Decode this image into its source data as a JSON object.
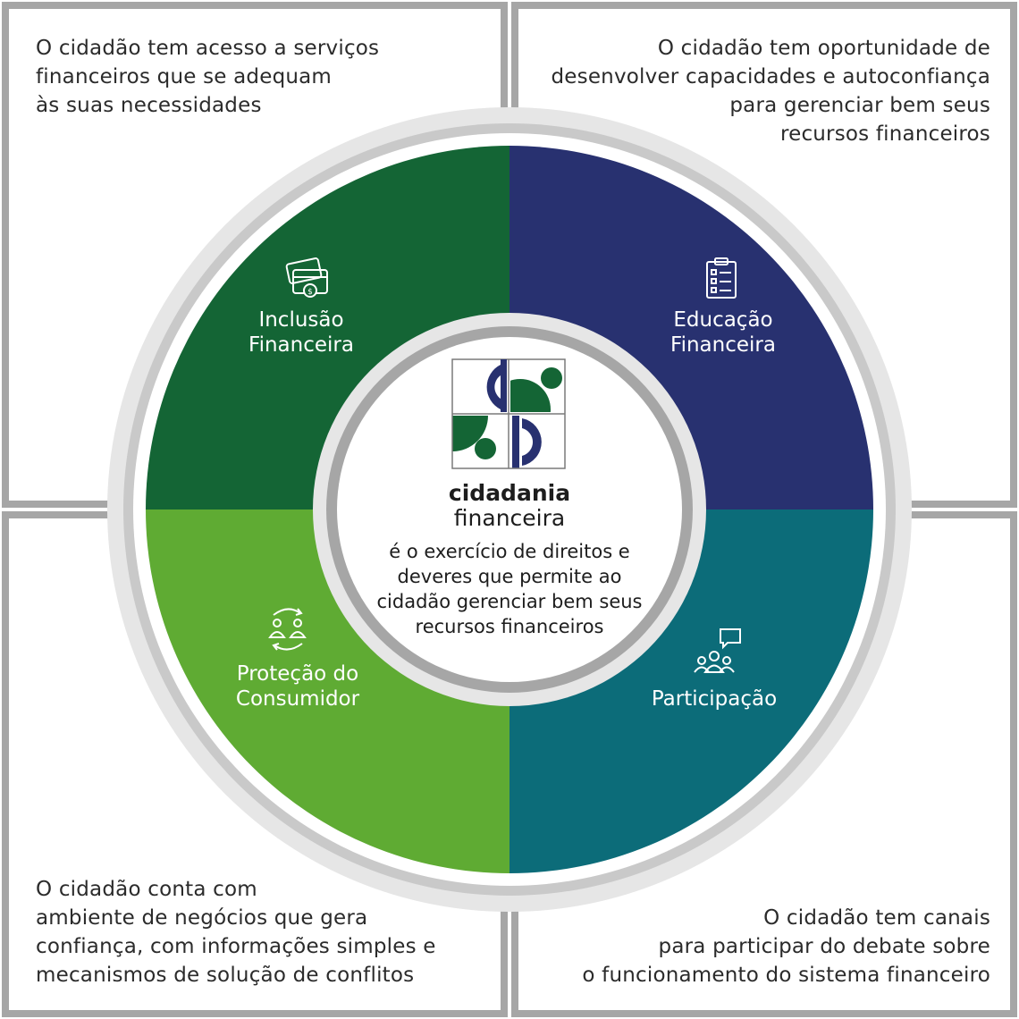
{
  "corners": {
    "top_left": "O cidadão tem acesso a serviços\nfinanceiros que se adequam\nàs suas necessidades",
    "top_right": "O cidadão tem oportunidade de\ndesenvolver capacidades e autoconfiança\npara gerenciar bem seus\nrecursos financeiros",
    "bottom_left": "O cidadão conta com\nambiente de negócios que gera\nconfiança, com informações simples e\nmecanismos de solução de conflitos",
    "bottom_right": "O cidadão tem canais\npara participar do debate sobre\no funcionamento do sistema financeiro"
  },
  "segments": {
    "inclusao": {
      "label": "Inclusão\nFinanceira",
      "color": "#146535",
      "icon": "credit-cards-coin-icon"
    },
    "educacao": {
      "label": "Educação\nFinanceira",
      "color": "#283170",
      "icon": "clipboard-checklist-icon"
    },
    "protecao": {
      "label": "Proteção do\nConsumidor",
      "color": "#5fab33",
      "icon": "people-exchange-icon"
    },
    "participacao": {
      "label": "Participação",
      "color": "#0c6c79",
      "icon": "group-speech-bubble-icon"
    }
  },
  "center": {
    "brand_bold": "cidadania",
    "brand_light": "financeira",
    "text": "é o exercício de direitos e\ndeveres que permite ao\ncidadão gerenciar bem seus\nrecursos financeiros"
  },
  "colors": {
    "frame_gray": "#a6a6a6",
    "ring_gray": "#c9c9c9",
    "ring_light": "#e6e6e6",
    "logo_navy": "#283170",
    "logo_green": "#146535"
  }
}
